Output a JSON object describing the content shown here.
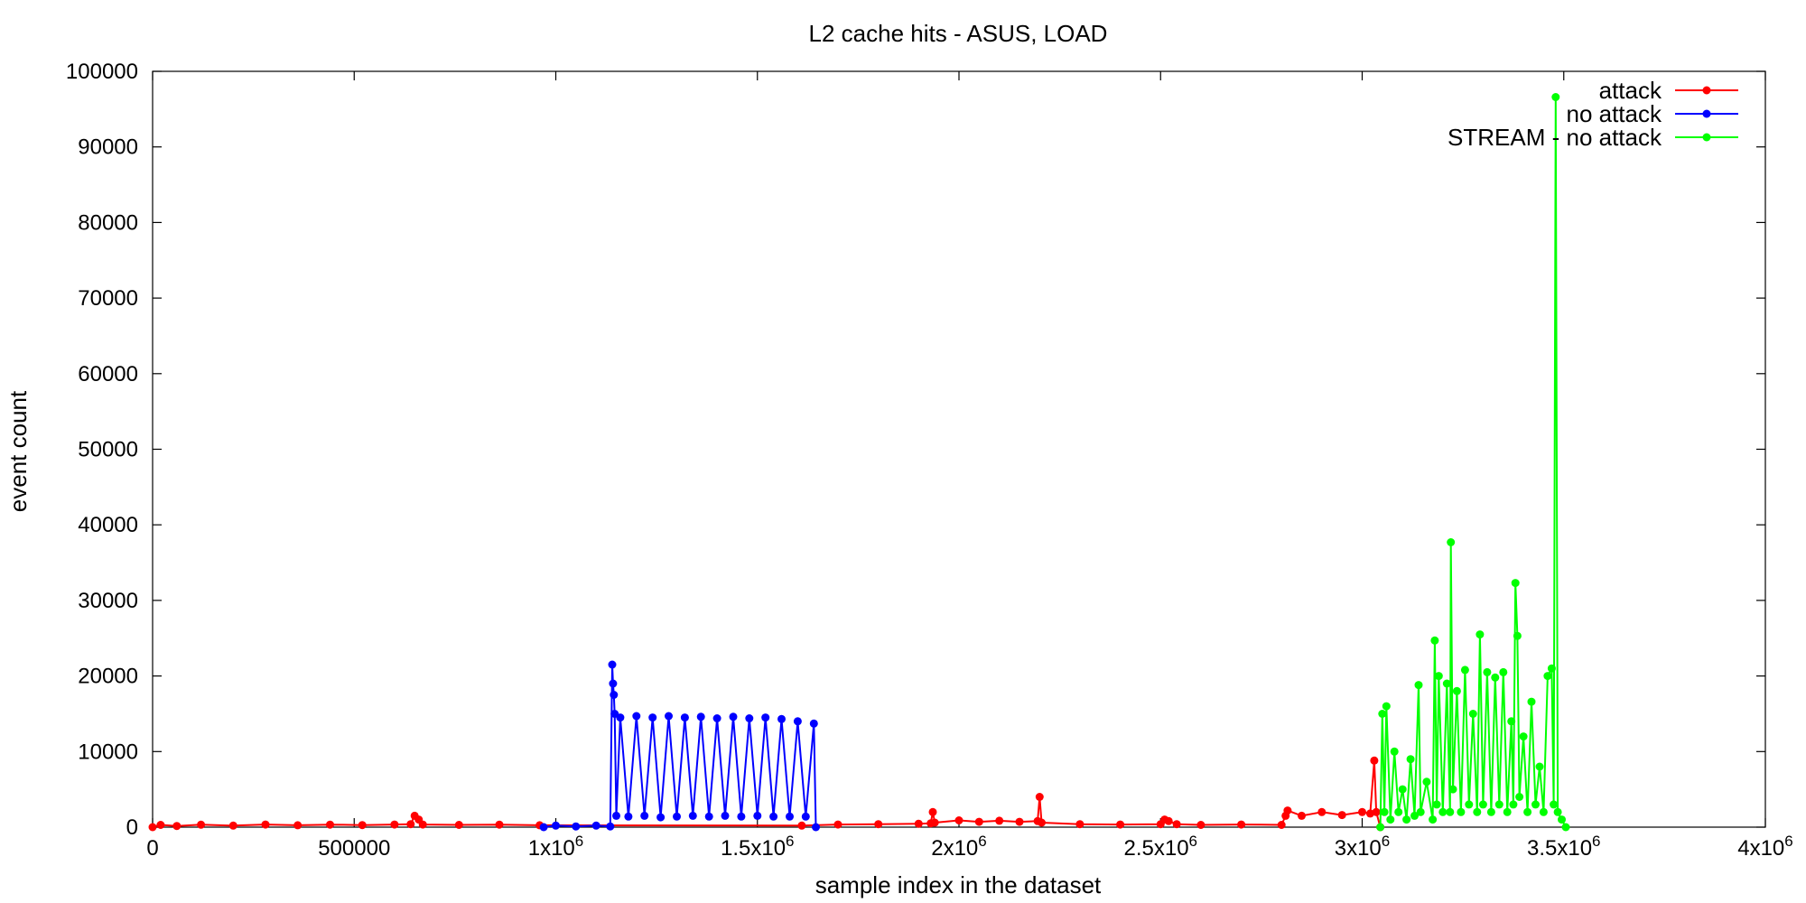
{
  "chart_data": {
    "type": "line",
    "title": "L2 cache hits - ASUS, LOAD",
    "xlabel": "sample index in the dataset",
    "ylabel": "event count",
    "xlim": [
      0,
      4000000
    ],
    "ylim": [
      0,
      100000
    ],
    "x_ticks": [
      {
        "value": 0,
        "label": "0"
      },
      {
        "value": 500000,
        "label": "500000"
      },
      {
        "value": 1000000,
        "label": "1x10",
        "sup": "6"
      },
      {
        "value": 1500000,
        "label": "1.5x10",
        "sup": "6"
      },
      {
        "value": 2000000,
        "label": "2x10",
        "sup": "6"
      },
      {
        "value": 2500000,
        "label": "2.5x10",
        "sup": "6"
      },
      {
        "value": 3000000,
        "label": "3x10",
        "sup": "6"
      },
      {
        "value": 3500000,
        "label": "3.5x10",
        "sup": "6"
      },
      {
        "value": 4000000,
        "label": "4x10",
        "sup": "6"
      }
    ],
    "y_ticks": [
      {
        "value": 0,
        "label": "0"
      },
      {
        "value": 10000,
        "label": "10000"
      },
      {
        "value": 20000,
        "label": "20000"
      },
      {
        "value": 30000,
        "label": "30000"
      },
      {
        "value": 40000,
        "label": "40000"
      },
      {
        "value": 50000,
        "label": "50000"
      },
      {
        "value": 60000,
        "label": "60000"
      },
      {
        "value": 70000,
        "label": "70000"
      },
      {
        "value": 80000,
        "label": "80000"
      },
      {
        "value": 90000,
        "label": "90000"
      },
      {
        "value": 100000,
        "label": "100000"
      }
    ],
    "grid": false,
    "legend_position": "top-right",
    "series": [
      {
        "name": "attack",
        "color": "#ff0000",
        "points": [
          [
            0,
            0
          ],
          [
            20000,
            300
          ],
          [
            60000,
            150
          ],
          [
            120000,
            320
          ],
          [
            200000,
            200
          ],
          [
            280000,
            350
          ],
          [
            360000,
            250
          ],
          [
            440000,
            330
          ],
          [
            520000,
            280
          ],
          [
            600000,
            350
          ],
          [
            640000,
            400
          ],
          [
            650000,
            1500
          ],
          [
            660000,
            1000
          ],
          [
            670000,
            350
          ],
          [
            760000,
            300
          ],
          [
            860000,
            330
          ],
          [
            960000,
            250
          ],
          [
            1610000,
            200
          ],
          [
            1700000,
            350
          ],
          [
            1800000,
            400
          ],
          [
            1900000,
            450
          ],
          [
            1930000,
            500
          ],
          [
            1935000,
            2000
          ],
          [
            1940000,
            600
          ],
          [
            2000000,
            900
          ],
          [
            2050000,
            700
          ],
          [
            2100000,
            850
          ],
          [
            2150000,
            700
          ],
          [
            2195000,
            800
          ],
          [
            2200000,
            4000
          ],
          [
            2205000,
            600
          ],
          [
            2300000,
            400
          ],
          [
            2400000,
            350
          ],
          [
            2500000,
            400
          ],
          [
            2510000,
            1000
          ],
          [
            2520000,
            800
          ],
          [
            2540000,
            400
          ],
          [
            2600000,
            300
          ],
          [
            2700000,
            350
          ],
          [
            2800000,
            300
          ],
          [
            2810000,
            1500
          ],
          [
            2815000,
            2200
          ],
          [
            2850000,
            1500
          ],
          [
            2900000,
            2000
          ],
          [
            2950000,
            1600
          ],
          [
            3000000,
            2000
          ],
          [
            3020000,
            1800
          ],
          [
            3030000,
            8800
          ],
          [
            3035000,
            2000
          ],
          [
            3045000,
            0
          ]
        ]
      },
      {
        "name": "no attack",
        "color": "#0000ff",
        "points": [
          [
            970000,
            0
          ],
          [
            1000000,
            200
          ],
          [
            1050000,
            100
          ],
          [
            1100000,
            200
          ],
          [
            1135000,
            100
          ],
          [
            1140000,
            21500
          ],
          [
            1142000,
            19000
          ],
          [
            1144000,
            17500
          ],
          [
            1146000,
            15000
          ],
          [
            1150000,
            1500
          ],
          [
            1160000,
            14500
          ],
          [
            1180000,
            1400
          ],
          [
            1200000,
            14700
          ],
          [
            1220000,
            1500
          ],
          [
            1240000,
            14500
          ],
          [
            1260000,
            1300
          ],
          [
            1280000,
            14700
          ],
          [
            1300000,
            1400
          ],
          [
            1320000,
            14500
          ],
          [
            1340000,
            1500
          ],
          [
            1360000,
            14600
          ],
          [
            1380000,
            1400
          ],
          [
            1400000,
            14400
          ],
          [
            1420000,
            1500
          ],
          [
            1440000,
            14600
          ],
          [
            1460000,
            1400
          ],
          [
            1480000,
            14400
          ],
          [
            1500000,
            1500
          ],
          [
            1520000,
            14500
          ],
          [
            1540000,
            1400
          ],
          [
            1560000,
            14300
          ],
          [
            1580000,
            1400
          ],
          [
            1600000,
            14000
          ],
          [
            1620000,
            1400
          ],
          [
            1640000,
            13700
          ],
          [
            1645000,
            0
          ]
        ]
      },
      {
        "name": "STREAM - no attack",
        "color": "#00ff00",
        "points": [
          [
            3045000,
            0
          ],
          [
            3050000,
            15000
          ],
          [
            3055000,
            2000
          ],
          [
            3060000,
            16000
          ],
          [
            3070000,
            1000
          ],
          [
            3080000,
            10000
          ],
          [
            3090000,
            2000
          ],
          [
            3100000,
            5000
          ],
          [
            3110000,
            1000
          ],
          [
            3120000,
            9000
          ],
          [
            3130000,
            1500
          ],
          [
            3140000,
            18800
          ],
          [
            3145000,
            2000
          ],
          [
            3160000,
            6000
          ],
          [
            3175000,
            1000
          ],
          [
            3180000,
            24700
          ],
          [
            3185000,
            3000
          ],
          [
            3190000,
            20000
          ],
          [
            3200000,
            2000
          ],
          [
            3210000,
            19000
          ],
          [
            3218000,
            2000
          ],
          [
            3220000,
            37700
          ],
          [
            3225000,
            5000
          ],
          [
            3235000,
            18000
          ],
          [
            3245000,
            2000
          ],
          [
            3255000,
            20800
          ],
          [
            3265000,
            3000
          ],
          [
            3275000,
            15000
          ],
          [
            3285000,
            2000
          ],
          [
            3292000,
            25500
          ],
          [
            3300000,
            3000
          ],
          [
            3310000,
            20500
          ],
          [
            3320000,
            2000
          ],
          [
            3330000,
            19800
          ],
          [
            3340000,
            3000
          ],
          [
            3350000,
            20500
          ],
          [
            3360000,
            2000
          ],
          [
            3370000,
            14000
          ],
          [
            3375000,
            3000
          ],
          [
            3380000,
            32300
          ],
          [
            3385000,
            25300
          ],
          [
            3390000,
            4000
          ],
          [
            3400000,
            12000
          ],
          [
            3410000,
            2000
          ],
          [
            3420000,
            16600
          ],
          [
            3430000,
            3000
          ],
          [
            3440000,
            8000
          ],
          [
            3450000,
            2000
          ],
          [
            3460000,
            20000
          ],
          [
            3470000,
            21000
          ],
          [
            3475000,
            3000
          ],
          [
            3480000,
            96600
          ],
          [
            3485000,
            2000
          ],
          [
            3495000,
            1000
          ],
          [
            3505000,
            0
          ]
        ]
      }
    ]
  }
}
